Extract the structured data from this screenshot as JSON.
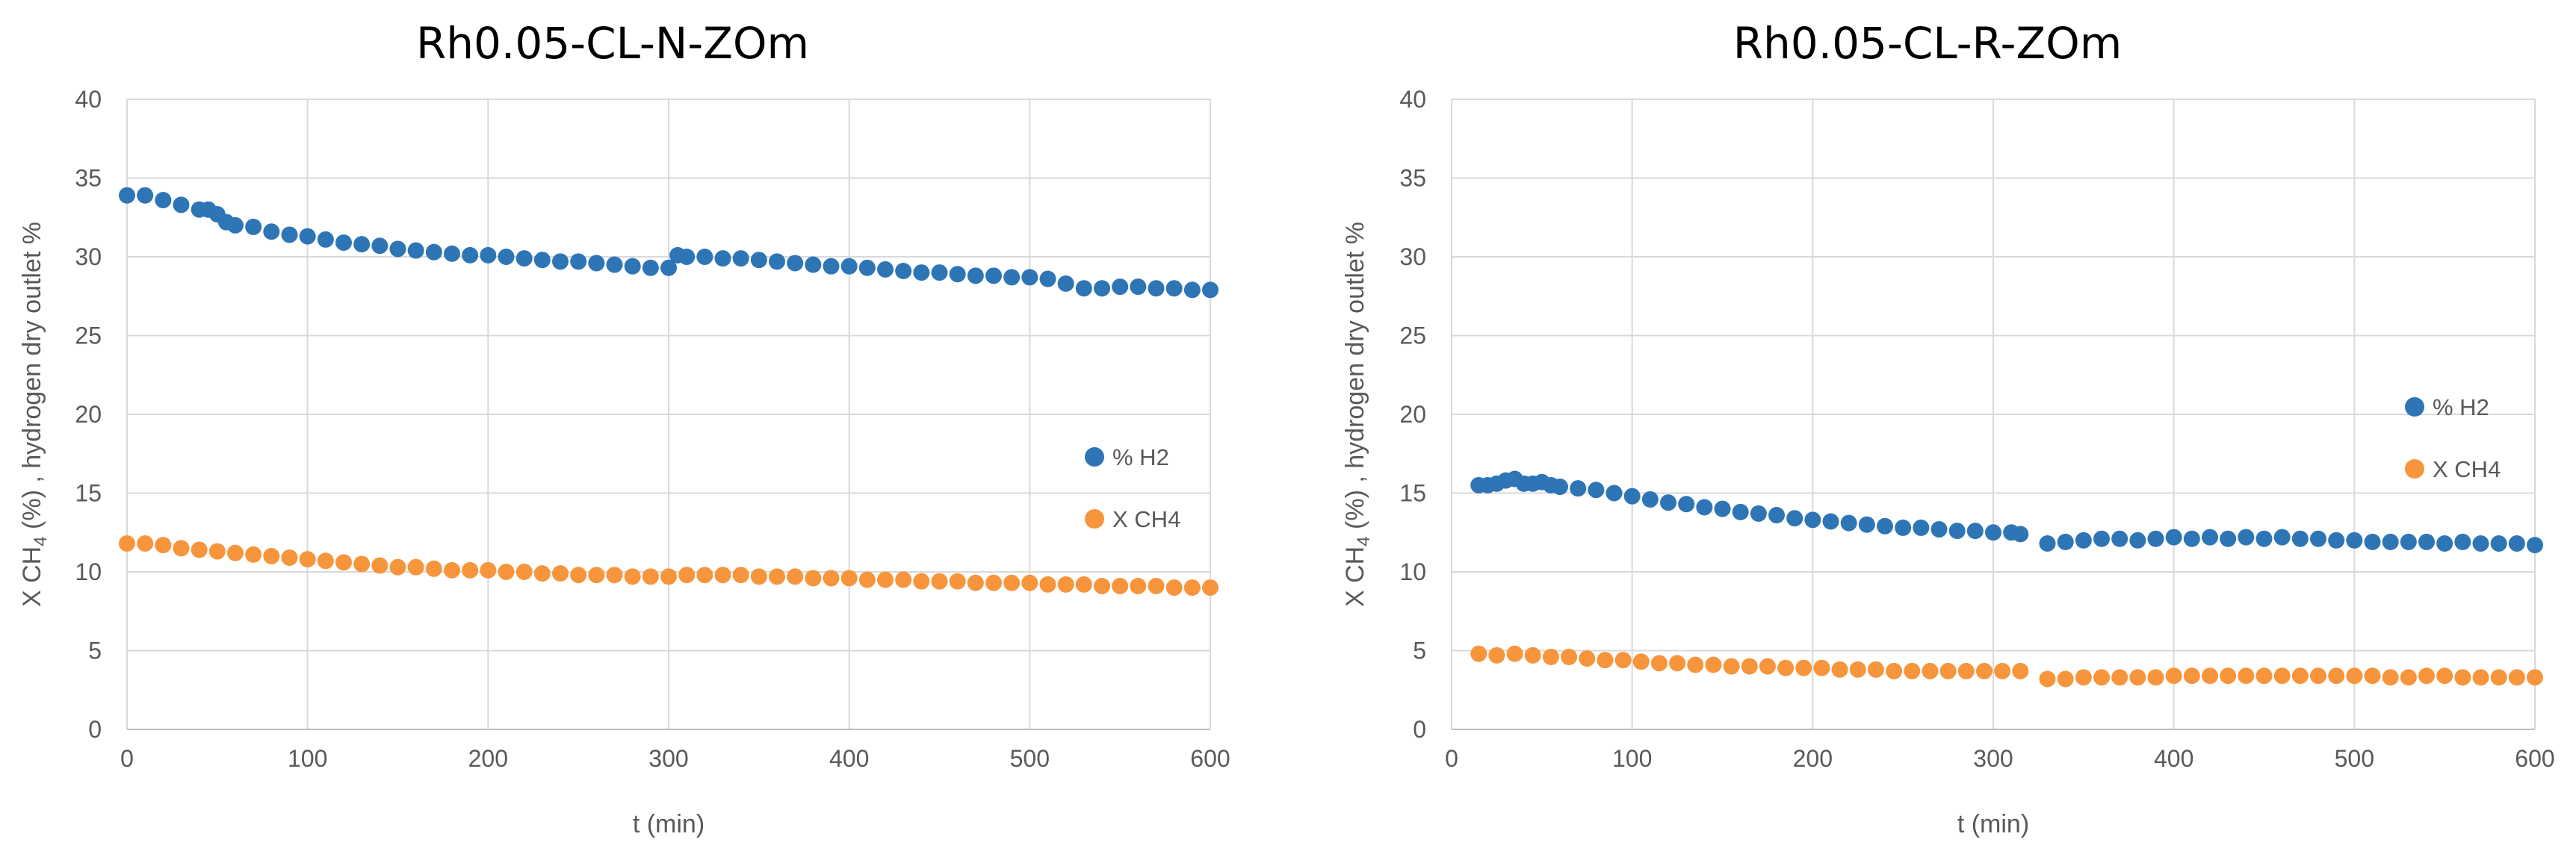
{
  "chart_data": [
    {
      "type": "scatter",
      "title": "Rh0.05-CL-N-ZOm",
      "xlabel": "t (min)",
      "ylabel_parts": [
        "X CH",
        "4",
        " (%) , hydrogen dry outlet %"
      ],
      "xlim": [
        0,
        600
      ],
      "ylim": [
        0,
        40
      ],
      "x_ticks": [
        "0",
        "100",
        "200",
        "300",
        "400",
        "500",
        "600"
      ],
      "y_ticks": [
        "0",
        "5",
        "10",
        "15",
        "20",
        "25",
        "30",
        "35",
        "40"
      ],
      "grid": true,
      "legend_position": "right-middle",
      "series": [
        {
          "name": "% H2",
          "color": "#2e75b6",
          "points": [
            [
              0,
              33.9
            ],
            [
              10,
              33.9
            ],
            [
              20,
              33.6
            ],
            [
              30,
              33.3
            ],
            [
              40,
              33.0
            ],
            [
              45,
              33.0
            ],
            [
              50,
              32.7
            ],
            [
              55,
              32.2
            ],
            [
              60,
              32.0
            ],
            [
              70,
              31.9
            ],
            [
              80,
              31.6
            ],
            [
              90,
              31.4
            ],
            [
              100,
              31.3
            ],
            [
              110,
              31.1
            ],
            [
              120,
              30.9
            ],
            [
              130,
              30.8
            ],
            [
              140,
              30.7
            ],
            [
              150,
              30.5
            ],
            [
              160,
              30.4
            ],
            [
              170,
              30.3
            ],
            [
              180,
              30.2
            ],
            [
              190,
              30.1
            ],
            [
              200,
              30.1
            ],
            [
              210,
              30.0
            ],
            [
              220,
              29.9
            ],
            [
              230,
              29.8
            ],
            [
              240,
              29.7
            ],
            [
              250,
              29.7
            ],
            [
              260,
              29.6
            ],
            [
              270,
              29.5
            ],
            [
              280,
              29.4
            ],
            [
              290,
              29.3
            ],
            [
              300,
              29.3
            ],
            [
              305,
              30.1
            ],
            [
              310,
              30.0
            ],
            [
              320,
              30.0
            ],
            [
              330,
              29.9
            ],
            [
              340,
              29.9
            ],
            [
              350,
              29.8
            ],
            [
              360,
              29.7
            ],
            [
              370,
              29.6
            ],
            [
              380,
              29.5
            ],
            [
              390,
              29.4
            ],
            [
              400,
              29.4
            ],
            [
              410,
              29.3
            ],
            [
              420,
              29.2
            ],
            [
              430,
              29.1
            ],
            [
              440,
              29.0
            ],
            [
              450,
              29.0
            ],
            [
              460,
              28.9
            ],
            [
              470,
              28.8
            ],
            [
              480,
              28.8
            ],
            [
              490,
              28.7
            ],
            [
              500,
              28.7
            ],
            [
              510,
              28.6
            ],
            [
              520,
              28.3
            ],
            [
              530,
              28.0
            ],
            [
              540,
              28.0
            ],
            [
              550,
              28.1
            ],
            [
              560,
              28.1
            ],
            [
              570,
              28.0
            ],
            [
              580,
              28.0
            ],
            [
              590,
              27.9
            ],
            [
              600,
              27.9
            ]
          ]
        },
        {
          "name": "X CH4",
          "color": "#f7953c",
          "points": [
            [
              0,
              11.8
            ],
            [
              10,
              11.8
            ],
            [
              20,
              11.7
            ],
            [
              30,
              11.5
            ],
            [
              40,
              11.4
            ],
            [
              50,
              11.3
            ],
            [
              60,
              11.2
            ],
            [
              70,
              11.1
            ],
            [
              80,
              11.0
            ],
            [
              90,
              10.9
            ],
            [
              100,
              10.8
            ],
            [
              110,
              10.7
            ],
            [
              120,
              10.6
            ],
            [
              130,
              10.5
            ],
            [
              140,
              10.4
            ],
            [
              150,
              10.3
            ],
            [
              160,
              10.3
            ],
            [
              170,
              10.2
            ],
            [
              180,
              10.1
            ],
            [
              190,
              10.1
            ],
            [
              200,
              10.1
            ],
            [
              210,
              10.0
            ],
            [
              220,
              10.0
            ],
            [
              230,
              9.9
            ],
            [
              240,
              9.9
            ],
            [
              250,
              9.8
            ],
            [
              260,
              9.8
            ],
            [
              270,
              9.8
            ],
            [
              280,
              9.7
            ],
            [
              290,
              9.7
            ],
            [
              300,
              9.7
            ],
            [
              310,
              9.8
            ],
            [
              320,
              9.8
            ],
            [
              330,
              9.8
            ],
            [
              340,
              9.8
            ],
            [
              350,
              9.7
            ],
            [
              360,
              9.7
            ],
            [
              370,
              9.7
            ],
            [
              380,
              9.6
            ],
            [
              390,
              9.6
            ],
            [
              400,
              9.6
            ],
            [
              410,
              9.5
            ],
            [
              420,
              9.5
            ],
            [
              430,
              9.5
            ],
            [
              440,
              9.4
            ],
            [
              450,
              9.4
            ],
            [
              460,
              9.4
            ],
            [
              470,
              9.3
            ],
            [
              480,
              9.3
            ],
            [
              490,
              9.3
            ],
            [
              500,
              9.3
            ],
            [
              510,
              9.2
            ],
            [
              520,
              9.2
            ],
            [
              530,
              9.2
            ],
            [
              540,
              9.1
            ],
            [
              550,
              9.1
            ],
            [
              560,
              9.1
            ],
            [
              570,
              9.1
            ],
            [
              580,
              9.0
            ],
            [
              590,
              9.0
            ],
            [
              600,
              9.0
            ]
          ]
        }
      ]
    },
    {
      "type": "scatter",
      "title": "Rh0.05-CL-R-ZOm",
      "xlabel": "t (min)",
      "ylabel_parts": [
        "X CH",
        "4",
        " (%) , hydrogen dry outlet %"
      ],
      "xlim": [
        0,
        600
      ],
      "ylim": [
        0,
        40
      ],
      "x_ticks": [
        "0",
        "100",
        "200",
        "300",
        "400",
        "500",
        "600"
      ],
      "y_ticks": [
        "0",
        "5",
        "10",
        "15",
        "20",
        "25",
        "30",
        "35",
        "40"
      ],
      "grid": true,
      "legend_position": "right-middle",
      "series": [
        {
          "name": "% H2",
          "color": "#2e75b6",
          "points": [
            [
              15,
              15.5
            ],
            [
              20,
              15.5
            ],
            [
              25,
              15.6
            ],
            [
              30,
              15.8
            ],
            [
              35,
              15.9
            ],
            [
              40,
              15.6
            ],
            [
              45,
              15.6
            ],
            [
              50,
              15.7
            ],
            [
              55,
              15.5
            ],
            [
              60,
              15.4
            ],
            [
              70,
              15.3
            ],
            [
              80,
              15.2
            ],
            [
              90,
              15.0
            ],
            [
              100,
              14.8
            ],
            [
              110,
              14.6
            ],
            [
              120,
              14.4
            ],
            [
              130,
              14.3
            ],
            [
              140,
              14.1
            ],
            [
              150,
              14.0
            ],
            [
              160,
              13.8
            ],
            [
              170,
              13.7
            ],
            [
              180,
              13.6
            ],
            [
              190,
              13.4
            ],
            [
              200,
              13.3
            ],
            [
              210,
              13.2
            ],
            [
              220,
              13.1
            ],
            [
              230,
              13.0
            ],
            [
              240,
              12.9
            ],
            [
              250,
              12.8
            ],
            [
              260,
              12.8
            ],
            [
              270,
              12.7
            ],
            [
              280,
              12.6
            ],
            [
              290,
              12.6
            ],
            [
              300,
              12.5
            ],
            [
              310,
              12.5
            ],
            [
              315,
              12.4
            ],
            [
              330,
              11.8
            ],
            [
              340,
              11.9
            ],
            [
              350,
              12.0
            ],
            [
              360,
              12.1
            ],
            [
              370,
              12.1
            ],
            [
              380,
              12.0
            ],
            [
              390,
              12.1
            ],
            [
              400,
              12.2
            ],
            [
              410,
              12.1
            ],
            [
              420,
              12.2
            ],
            [
              430,
              12.1
            ],
            [
              440,
              12.2
            ],
            [
              450,
              12.1
            ],
            [
              460,
              12.2
            ],
            [
              470,
              12.1
            ],
            [
              480,
              12.1
            ],
            [
              490,
              12.0
            ],
            [
              500,
              12.0
            ],
            [
              510,
              11.9
            ],
            [
              520,
              11.9
            ],
            [
              530,
              11.9
            ],
            [
              540,
              11.9
            ],
            [
              550,
              11.8
            ],
            [
              560,
              11.9
            ],
            [
              570,
              11.8
            ],
            [
              580,
              11.8
            ],
            [
              590,
              11.8
            ],
            [
              600,
              11.7
            ]
          ]
        },
        {
          "name": "X CH4",
          "color": "#f7953c",
          "points": [
            [
              15,
              4.8
            ],
            [
              25,
              4.7
            ],
            [
              35,
              4.8
            ],
            [
              45,
              4.7
            ],
            [
              55,
              4.6
            ],
            [
              65,
              4.6
            ],
            [
              75,
              4.5
            ],
            [
              85,
              4.4
            ],
            [
              95,
              4.4
            ],
            [
              105,
              4.3
            ],
            [
              115,
              4.2
            ],
            [
              125,
              4.2
            ],
            [
              135,
              4.1
            ],
            [
              145,
              4.1
            ],
            [
              155,
              4.0
            ],
            [
              165,
              4.0
            ],
            [
              175,
              4.0
            ],
            [
              185,
              3.9
            ],
            [
              195,
              3.9
            ],
            [
              205,
              3.9
            ],
            [
              215,
              3.8
            ],
            [
              225,
              3.8
            ],
            [
              235,
              3.8
            ],
            [
              245,
              3.7
            ],
            [
              255,
              3.7
            ],
            [
              265,
              3.7
            ],
            [
              275,
              3.7
            ],
            [
              285,
              3.7
            ],
            [
              295,
              3.7
            ],
            [
              305,
              3.7
            ],
            [
              315,
              3.7
            ],
            [
              330,
              3.2
            ],
            [
              340,
              3.2
            ],
            [
              350,
              3.3
            ],
            [
              360,
              3.3
            ],
            [
              370,
              3.3
            ],
            [
              380,
              3.3
            ],
            [
              390,
              3.3
            ],
            [
              400,
              3.4
            ],
            [
              410,
              3.4
            ],
            [
              420,
              3.4
            ],
            [
              430,
              3.4
            ],
            [
              440,
              3.4
            ],
            [
              450,
              3.4
            ],
            [
              460,
              3.4
            ],
            [
              470,
              3.4
            ],
            [
              480,
              3.4
            ],
            [
              490,
              3.4
            ],
            [
              500,
              3.4
            ],
            [
              510,
              3.4
            ],
            [
              520,
              3.3
            ],
            [
              530,
              3.3
            ],
            [
              540,
              3.4
            ],
            [
              550,
              3.4
            ],
            [
              560,
              3.3
            ],
            [
              570,
              3.3
            ],
            [
              580,
              3.3
            ],
            [
              590,
              3.3
            ],
            [
              600,
              3.3
            ]
          ]
        }
      ]
    }
  ]
}
